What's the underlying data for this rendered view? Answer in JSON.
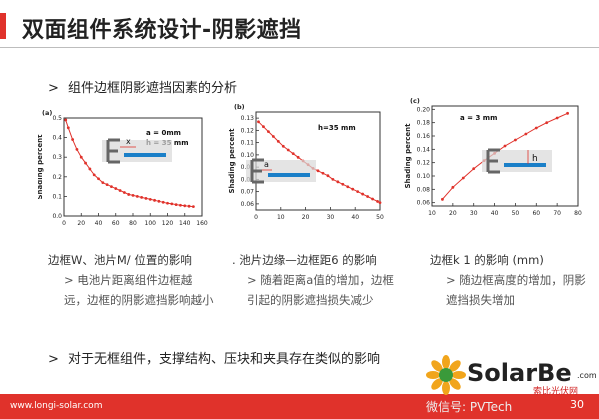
{
  "header": {
    "title": "双面组件系统设计-阴影遮挡"
  },
  "section": {
    "marker": ">",
    "heading": "组件边框阴影遮挡因素的分析"
  },
  "panels": [
    {
      "caption": "边框W、池片M/ 位置的影响",
      "notes": [
        "> 电池片距离组件边框越远，边框的阴影遮挡影响越小"
      ]
    },
    {
      "caption": ". 池片边缘—边框距6 的影响",
      "notes": [
        "> 随着距离a值的增加，边框引起的阴影遮挡损失减少"
      ]
    },
    {
      "caption": "边框k 1 的影响 (mm)",
      "notes": [
        "> 随边框高度的增加，阴影遮挡损失增加"
      ]
    }
  ],
  "bottom_bullet": {
    "marker": ">",
    "text": "对于无框组件，支撑结构、压块和夹具存在类似的影响"
  },
  "footer": {
    "url": "www.longi-solar.com",
    "page": "30"
  },
  "watermark": {
    "brand": "SolarBe",
    "com": ".com",
    "site": "索比光伏网",
    "wechat": "微信号: PVTech"
  },
  "colors": {
    "accent": "#e0322b",
    "series": "#e0322b",
    "module": "#1a7fc8"
  },
  "chart_data": [
    {
      "type": "line",
      "panel_label": "(a)",
      "xlabel": "",
      "ylabel": "Shading percent",
      "xlim": [
        0,
        160
      ],
      "ylim": [
        0,
        0.5
      ],
      "xticks": [
        "0",
        "20",
        "40",
        "60",
        "80",
        "100",
        "120",
        "140",
        "160"
      ],
      "yticks": [
        "0.0",
        "0.1",
        "0.2",
        "0.3",
        "0.4",
        "0.5"
      ],
      "annotations": [
        "a = 0mm",
        "h = 35 mm"
      ],
      "diagram_labels": [
        "x"
      ],
      "series": [
        {
          "x": [
            2,
            5,
            10,
            15,
            20,
            25,
            30,
            35,
            40,
            45,
            50,
            55,
            60,
            65,
            70,
            75,
            80,
            85,
            90,
            95,
            100,
            105,
            110,
            115,
            120,
            125,
            130,
            135,
            140,
            145,
            150
          ],
          "y": [
            0.49,
            0.45,
            0.39,
            0.34,
            0.3,
            0.27,
            0.24,
            0.21,
            0.19,
            0.17,
            0.16,
            0.15,
            0.14,
            0.13,
            0.12,
            0.11,
            0.105,
            0.1,
            0.095,
            0.09,
            0.085,
            0.08,
            0.075,
            0.07,
            0.065,
            0.062,
            0.058,
            0.055,
            0.052,
            0.05,
            0.048
          ]
        }
      ]
    },
    {
      "type": "line",
      "panel_label": "(b)",
      "xlabel": "",
      "ylabel": "Shading percent",
      "xlim": [
        0,
        50
      ],
      "ylim": [
        0.055,
        0.135
      ],
      "xticks": [
        "0",
        "10",
        "20",
        "30",
        "40",
        "50"
      ],
      "yticks": [
        "0.06",
        "0.07",
        "0.08",
        "0.09",
        "0.10",
        "0.11",
        "0.12",
        "0.13"
      ],
      "annotations": [
        "h=35 mm"
      ],
      "diagram_labels": [
        "a"
      ],
      "series": [
        {
          "x": [
            1,
            3,
            5,
            7,
            9,
            11,
            13,
            15,
            17,
            19,
            21,
            23,
            25,
            27,
            29,
            31,
            33,
            35,
            37,
            39,
            41,
            43,
            45,
            47,
            49,
            50
          ],
          "y": [
            0.127,
            0.123,
            0.119,
            0.115,
            0.111,
            0.107,
            0.104,
            0.101,
            0.098,
            0.095,
            0.092,
            0.089,
            0.087,
            0.085,
            0.083,
            0.08,
            0.078,
            0.076,
            0.074,
            0.072,
            0.07,
            0.068,
            0.066,
            0.064,
            0.062,
            0.061
          ]
        }
      ]
    },
    {
      "type": "line",
      "panel_label": "(c)",
      "xlabel": "",
      "ylabel": "Shading percent",
      "xlim": [
        10,
        80
      ],
      "ylim": [
        0.055,
        0.205
      ],
      "xticks": [
        "10",
        "20",
        "30",
        "40",
        "50",
        "60",
        "70",
        "80"
      ],
      "yticks": [
        "0.06",
        "0.08",
        "0.10",
        "0.12",
        "0.14",
        "0.16",
        "0.18",
        "0.20"
      ],
      "annotations": [
        "a = 3 mm"
      ],
      "diagram_labels": [
        "h"
      ],
      "series": [
        {
          "x": [
            15,
            20,
            25,
            30,
            35,
            40,
            45,
            50,
            55,
            60,
            65,
            70,
            75
          ],
          "y": [
            0.065,
            0.083,
            0.097,
            0.111,
            0.123,
            0.134,
            0.145,
            0.154,
            0.163,
            0.172,
            0.18,
            0.187,
            0.194
          ]
        }
      ]
    }
  ]
}
